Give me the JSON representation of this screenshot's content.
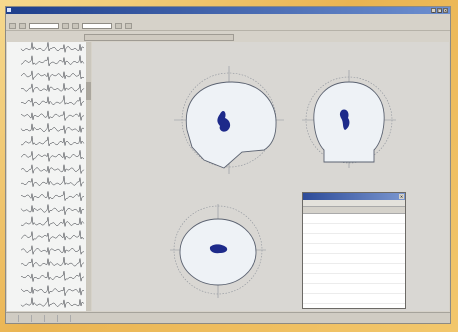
{
  "window": {
    "title": "",
    "buttons": [
      "_",
      "□",
      "×"
    ]
  },
  "menu": [],
  "toolbar": {
    "field_1": "",
    "field_2": ""
  },
  "viewer_tab": "",
  "eeg": {
    "channels": [
      "",
      "",
      "",
      "",
      "",
      "",
      "",
      "",
      "",
      "",
      "",
      "",
      "",
      "",
      "",
      "",
      "",
      "",
      "",
      ""
    ],
    "trace_color": "#2c2f36",
    "background": "#f3f4f3"
  },
  "head_views": [
    {
      "view": "sagittal",
      "source_color": "#1d2a8a"
    },
    {
      "view": "coronal",
      "source_color": "#1d2a8a"
    },
    {
      "view": "axial",
      "source_color": "#1d2a8a"
    }
  ],
  "results_panel": {
    "title": "",
    "subtitle": "",
    "columns": [
      "",
      "",
      ""
    ],
    "rows": [
      [
        "",
        "",
        ""
      ],
      [
        "",
        "",
        ""
      ],
      [
        "",
        "",
        ""
      ],
      [
        "",
        "",
        ""
      ],
      [
        "",
        "",
        ""
      ],
      [
        "",
        "",
        ""
      ],
      [
        "",
        "",
        ""
      ],
      [
        "",
        "",
        ""
      ],
      [
        "",
        "",
        ""
      ],
      [
        "",
        "",
        ""
      ]
    ]
  },
  "status": [
    "",
    "",
    "",
    "",
    ""
  ],
  "colors": {
    "head_fill": "#eef2f6",
    "head_outline": "#5b6270",
    "frame": "#eab452",
    "titlebar": "#1e3f8c"
  }
}
